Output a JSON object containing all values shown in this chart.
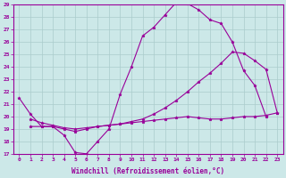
{
  "xlabel": "Windchill (Refroidissement éolien,°C)",
  "bg_color": "#cce8e8",
  "line_color": "#990099",
  "grid_color": "#aacccc",
  "xlim": [
    -0.5,
    23.5
  ],
  "ylim": [
    17,
    29
  ],
  "yticks": [
    17,
    18,
    19,
    20,
    21,
    22,
    23,
    24,
    25,
    26,
    27,
    28,
    29
  ],
  "xticks": [
    0,
    1,
    2,
    3,
    4,
    5,
    6,
    7,
    8,
    9,
    10,
    11,
    12,
    13,
    14,
    15,
    16,
    17,
    18,
    19,
    20,
    21,
    22,
    23
  ],
  "upper_x": [
    0,
    1,
    2,
    3,
    4,
    5,
    6,
    7,
    8,
    9,
    10,
    11,
    12,
    13,
    14,
    15,
    16,
    17,
    18,
    19,
    20,
    21,
    22
  ],
  "upper_y": [
    21.5,
    20.2,
    19.2,
    19.2,
    18.5,
    17.1,
    17.0,
    18.0,
    19.0,
    21.8,
    24.0,
    26.5,
    27.2,
    28.2,
    29.2,
    29.1,
    28.6,
    27.8,
    27.5,
    26.0,
    23.7,
    22.5,
    20.0
  ],
  "mid_x": [
    1,
    2,
    3,
    4,
    5,
    6,
    7,
    8,
    9,
    10,
    11,
    12,
    13,
    14,
    15,
    16,
    17,
    18,
    19,
    20,
    21,
    22,
    23
  ],
  "mid_y": [
    19.2,
    19.2,
    19.2,
    19.0,
    18.8,
    19.0,
    19.2,
    19.3,
    19.4,
    19.6,
    19.8,
    20.2,
    20.7,
    21.3,
    22.0,
    22.8,
    23.5,
    24.3,
    25.2,
    25.1,
    24.5,
    23.8,
    20.3
  ],
  "flat_x": [
    1,
    2,
    3,
    4,
    5,
    6,
    7,
    8,
    9,
    10,
    11,
    12,
    13,
    14,
    15,
    16,
    17,
    18,
    19,
    20,
    21,
    22,
    23
  ],
  "flat_y": [
    19.8,
    19.5,
    19.3,
    19.1,
    19.0,
    19.1,
    19.2,
    19.3,
    19.4,
    19.5,
    19.6,
    19.7,
    19.8,
    19.9,
    20.0,
    19.9,
    19.8,
    19.8,
    19.9,
    20.0,
    20.0,
    20.1,
    20.3
  ],
  "marker": "*",
  "markersize": 2.5,
  "linewidth": 0.8,
  "tick_fontsize": 4.5,
  "xlabel_fontsize": 5.5
}
